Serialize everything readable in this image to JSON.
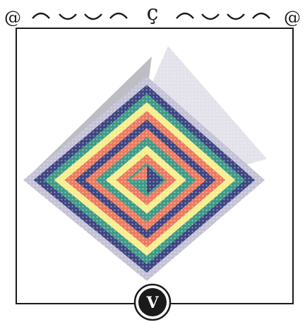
{
  "artwork": {
    "top_border": {
      "left_symbol": "@",
      "center_symbol": "ç",
      "right_symbol": "@"
    },
    "badge": {
      "letter": "V"
    },
    "palette": {
      "lavender": "#c4c1d6",
      "gray": "#b8b8be",
      "navy": "#3c4581",
      "coral": "#ec7a5f",
      "teal": "#3e9987",
      "yellow": "#f6ee8c",
      "frame": "#1a1a1a"
    }
  }
}
